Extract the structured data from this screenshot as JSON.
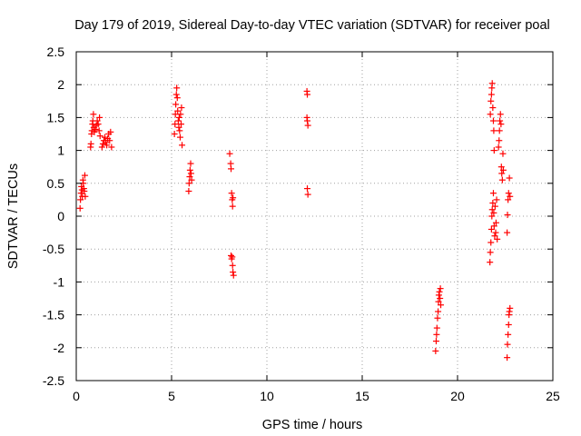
{
  "chart_data": {
    "type": "scatter",
    "title": "Day 179 of 2019, Sidereal Day-to-day VTEC variation (SDTVAR) for receiver poal",
    "xlabel": "GPS time / hours",
    "ylabel": "SDTVAR / TECUs",
    "xlim": [
      0,
      25
    ],
    "ylim": [
      -2.5,
      2.5
    ],
    "xticks": [
      0,
      5,
      10,
      15,
      20,
      25
    ],
    "xtick_labels": [
      "0",
      "5",
      "10",
      "15",
      "20",
      "25"
    ],
    "yticks": [
      2.5,
      2,
      1.5,
      1,
      0.5,
      0,
      -0.5,
      -1,
      -1.5,
      -2,
      -2.5
    ],
    "ytick_labels": [
      "2.5",
      "2",
      "1.5",
      "1",
      "0.5",
      "0",
      "-0.5",
      "-1",
      "-1.5",
      "-2",
      "-2.5"
    ],
    "grid": true,
    "marker": "+",
    "color": "#ff0000",
    "series": [
      {
        "name": "SDTVAR",
        "points": [
          [
            0.2,
            0.12
          ],
          [
            0.22,
            0.25
          ],
          [
            0.25,
            0.35
          ],
          [
            0.27,
            0.45
          ],
          [
            0.3,
            0.4
          ],
          [
            0.32,
            0.3
          ],
          [
            0.35,
            0.55
          ],
          [
            0.37,
            0.5
          ],
          [
            0.4,
            0.42
          ],
          [
            0.42,
            0.38
          ],
          [
            0.45,
            0.62
          ],
          [
            0.47,
            0.3
          ],
          [
            0.75,
            1.05
          ],
          [
            0.77,
            1.1
          ],
          [
            0.8,
            1.25
          ],
          [
            0.82,
            1.3
          ],
          [
            0.85,
            1.4
          ],
          [
            0.87,
            1.45
          ],
          [
            0.9,
            1.55
          ],
          [
            0.92,
            1.35
          ],
          [
            0.95,
            1.28
          ],
          [
            1.0,
            1.32
          ],
          [
            1.05,
            1.38
          ],
          [
            1.1,
            1.45
          ],
          [
            1.15,
            1.4
          ],
          [
            1.2,
            1.3
          ],
          [
            1.22,
            1.5
          ],
          [
            1.25,
            1.22
          ],
          [
            1.35,
            1.05
          ],
          [
            1.4,
            1.1
          ],
          [
            1.45,
            1.15
          ],
          [
            1.5,
            1.2
          ],
          [
            1.55,
            1.12
          ],
          [
            1.6,
            1.08
          ],
          [
            1.65,
            1.18
          ],
          [
            1.7,
            1.25
          ],
          [
            1.75,
            1.15
          ],
          [
            1.8,
            1.28
          ],
          [
            1.85,
            1.05
          ],
          [
            5.15,
            1.25
          ],
          [
            5.18,
            1.4
          ],
          [
            5.2,
            1.55
          ],
          [
            5.22,
            1.7
          ],
          [
            5.25,
            1.85
          ],
          [
            5.27,
            1.95
          ],
          [
            5.3,
            1.8
          ],
          [
            5.32,
            1.6
          ],
          [
            5.35,
            1.45
          ],
          [
            5.38,
            1.35
          ],
          [
            5.4,
            1.5
          ],
          [
            5.42,
            1.3
          ],
          [
            5.45,
            1.2
          ],
          [
            5.47,
            1.55
          ],
          [
            5.5,
            1.4
          ],
          [
            5.52,
            1.65
          ],
          [
            5.55,
            1.08
          ],
          [
            5.9,
            0.38
          ],
          [
            5.92,
            0.5
          ],
          [
            5.95,
            0.6
          ],
          [
            5.97,
            0.7
          ],
          [
            6.0,
            0.8
          ],
          [
            6.02,
            0.65
          ],
          [
            6.05,
            0.55
          ],
          [
            8.05,
            0.95
          ],
          [
            8.1,
            0.8
          ],
          [
            8.12,
            0.72
          ],
          [
            8.15,
            0.35
          ],
          [
            8.18,
            0.25
          ],
          [
            8.2,
            0.15
          ],
          [
            8.22,
            0.28
          ],
          [
            8.12,
            -0.6
          ],
          [
            8.15,
            -0.65
          ],
          [
            8.18,
            -0.62
          ],
          [
            8.2,
            -0.75
          ],
          [
            8.22,
            -0.85
          ],
          [
            8.25,
            -0.9
          ],
          [
            12.1,
            1.9
          ],
          [
            12.12,
            1.85
          ],
          [
            12.1,
            1.5
          ],
          [
            12.12,
            1.45
          ],
          [
            12.15,
            1.38
          ],
          [
            12.12,
            0.42
          ],
          [
            12.15,
            0.33
          ],
          [
            18.85,
            -2.05
          ],
          [
            18.88,
            -1.9
          ],
          [
            18.9,
            -1.8
          ],
          [
            18.92,
            -1.7
          ],
          [
            18.95,
            -1.55
          ],
          [
            18.98,
            -1.45
          ],
          [
            19.0,
            -1.3
          ],
          [
            19.02,
            -1.2
          ],
          [
            19.05,
            -1.15
          ],
          [
            19.08,
            -1.25
          ],
          [
            19.1,
            -1.1
          ],
          [
            19.12,
            -1.35
          ],
          [
            21.7,
            -0.7
          ],
          [
            21.72,
            -0.55
          ],
          [
            21.75,
            -0.4
          ],
          [
            21.78,
            -0.2
          ],
          [
            21.8,
            0.0
          ],
          [
            21.82,
            0.1
          ],
          [
            21.85,
            0.2
          ],
          [
            21.88,
            0.35
          ],
          [
            21.9,
            0.05
          ],
          [
            21.92,
            -0.15
          ],
          [
            21.95,
            -0.3
          ],
          [
            21.97,
            0.15
          ],
          [
            22.0,
            -0.25
          ],
          [
            22.02,
            -0.1
          ],
          [
            22.05,
            0.25
          ],
          [
            22.08,
            -0.35
          ],
          [
            21.72,
            1.55
          ],
          [
            21.75,
            1.75
          ],
          [
            21.78,
            1.85
          ],
          [
            21.8,
            1.95
          ],
          [
            21.82,
            2.02
          ],
          [
            21.85,
            1.65
          ],
          [
            21.88,
            1.45
          ],
          [
            21.9,
            1.3
          ],
          [
            21.92,
            1.0
          ],
          [
            22.15,
            1.05
          ],
          [
            22.18,
            1.15
          ],
          [
            22.2,
            1.3
          ],
          [
            22.22,
            1.45
          ],
          [
            22.25,
            1.55
          ],
          [
            22.28,
            1.4
          ],
          [
            22.3,
            0.75
          ],
          [
            22.32,
            0.65
          ],
          [
            22.35,
            0.55
          ],
          [
            22.38,
            0.95
          ],
          [
            22.4,
            0.7
          ],
          [
            22.6,
            -0.25
          ],
          [
            22.62,
            0.02
          ],
          [
            22.65,
            0.25
          ],
          [
            22.68,
            0.35
          ],
          [
            22.72,
            0.58
          ],
          [
            22.75,
            0.3
          ],
          [
            22.6,
            -2.15
          ],
          [
            22.62,
            -1.95
          ],
          [
            22.65,
            -1.8
          ],
          [
            22.68,
            -1.65
          ],
          [
            22.7,
            -1.5
          ],
          [
            22.72,
            -1.45
          ],
          [
            22.75,
            -1.4
          ]
        ]
      }
    ]
  }
}
